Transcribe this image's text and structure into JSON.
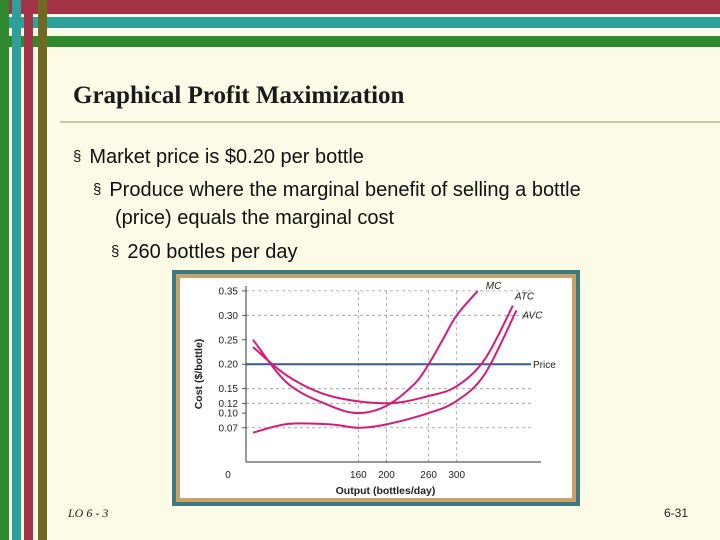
{
  "slide": {
    "title": "Graphical Profit Maximization",
    "bullets": [
      {
        "level": 1,
        "text": "Market price is $0.20 per bottle"
      },
      {
        "level": 2,
        "text": "Produce where the marginal benefit of selling a bottle"
      },
      {
        "level": 2,
        "text": "(price) equals the marginal cost",
        "continuation": true
      },
      {
        "level": 3,
        "text": "260 bottles per day"
      }
    ],
    "bullet_marker": "§",
    "footer_left": "LO 6 - 3",
    "footer_right": "6-31",
    "colors": {
      "maroon": "#a33448",
      "teal": "#2f9f9c",
      "green": "#2f8a2f",
      "olive": "#6f6a1f",
      "curves": "#d41b7a",
      "price_line": "#3559a4"
    }
  },
  "chart_data": {
    "type": "line",
    "xlabel": "Output (bottles/day)",
    "ylabel": "Cost ($/bottle)",
    "xlim": [
      0,
      420
    ],
    "ylim": [
      0,
      0.36
    ],
    "x_ticks": [
      0,
      160,
      200,
      260,
      300
    ],
    "y_ticks": [
      0.07,
      0.1,
      0.12,
      0.15,
      0.2,
      0.25,
      0.3,
      0.35
    ],
    "y_tick_labels": [
      "0.07",
      "0.10",
      "0.12",
      "0.15",
      "0.20",
      "0.25",
      "0.30",
      "0.35"
    ],
    "series": [
      {
        "name": "MC",
        "x": [
          10,
          60,
          120,
          160,
          200,
          240,
          260,
          280,
          300,
          330
        ],
        "y": [
          0.25,
          0.16,
          0.115,
          0.1,
          0.115,
          0.16,
          0.2,
          0.25,
          0.3,
          0.35
        ]
      },
      {
        "name": "ATC",
        "x": [
          10,
          60,
          120,
          200,
          260,
          300,
          340,
          380
        ],
        "y": [
          0.235,
          0.175,
          0.135,
          0.12,
          0.135,
          0.155,
          0.21,
          0.32
        ]
      },
      {
        "name": "AVC",
        "x": [
          10,
          60,
          120,
          160,
          200,
          260,
          300,
          340,
          385
        ],
        "y": [
          0.06,
          0.078,
          0.077,
          0.07,
          0.077,
          0.1,
          0.125,
          0.18,
          0.31
        ]
      }
    ],
    "price": {
      "name": "Price",
      "value": 0.2
    },
    "guides": [
      {
        "x": 160,
        "y": 0.07
      },
      {
        "x": 200,
        "y": 0.12
      },
      {
        "x": 260,
        "y": 0.2
      },
      {
        "x": 300,
        "y": 0.3
      }
    ],
    "guide_y_extras": [
      0.15,
      0.35
    ]
  }
}
